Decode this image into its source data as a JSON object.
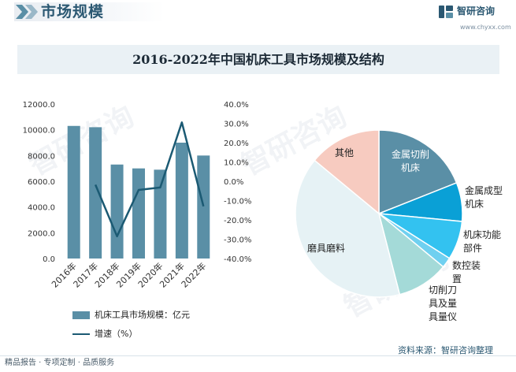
{
  "header": {
    "section_title": "市场规模",
    "brand_name": "智研咨询",
    "brand_url": "www.chyxx.com"
  },
  "watermark": {
    "text": "智研咨询"
  },
  "chart_title": "2016-2022年中国机床工具市场规模及结构",
  "chart_data": [
    {
      "type": "bar",
      "categories": [
        "2016年",
        "2017年",
        "2018年",
        "2019年",
        "2020年",
        "2021年",
        "2022年"
      ],
      "series": [
        {
          "name": "机床工具市场规模：亿元",
          "type": "bar",
          "axis": "left",
          "color": "#5a8fa6",
          "values": [
            10300,
            10200,
            7300,
            7000,
            6900,
            9000,
            8000
          ]
        },
        {
          "name": "增速（%）",
          "type": "line",
          "axis": "right",
          "color": "#1b5a73",
          "values": [
            null,
            -1.8,
            -28.5,
            -4.5,
            -3.2,
            30.5,
            -13.0
          ]
        }
      ],
      "yleft_ticks": [
        "0.0",
        "2000.0",
        "4000.0",
        "6000.0",
        "8000.0",
        "10000.0",
        "12000.0"
      ],
      "yleft_range": [
        0,
        12000
      ],
      "yright_ticks": [
        "-40.0%",
        "-30.0%",
        "-20.0%",
        "-10.0%",
        "0.0%",
        "10.0%",
        "20.0%",
        "30.0%",
        "40.0%"
      ],
      "yright_range": [
        -40,
        40
      ]
    },
    {
      "type": "pie",
      "labels": [
        "金属切削机床",
        "金属成型机床",
        "机床功能部件",
        "数控装置",
        "切削刀具及量具量仪",
        "磨具磨料",
        "其他"
      ],
      "values": [
        19.0,
        7.5,
        7.5,
        2.0,
        10.0,
        40.0,
        14.0
      ],
      "colors": [
        "#5a8fa6",
        "#0aa0d6",
        "#33c2f0",
        "#6fd0f0",
        "#a4dad8",
        "#e6f2f5",
        "#f7cbc0"
      ]
    }
  ],
  "legend": {
    "bar_label": "机床工具市场规模：亿元",
    "line_label": "增速（%）"
  },
  "footer": {
    "left": "精品报告 · 专项定制 · 品质服务",
    "source": "资料来源：智研咨询整理"
  }
}
